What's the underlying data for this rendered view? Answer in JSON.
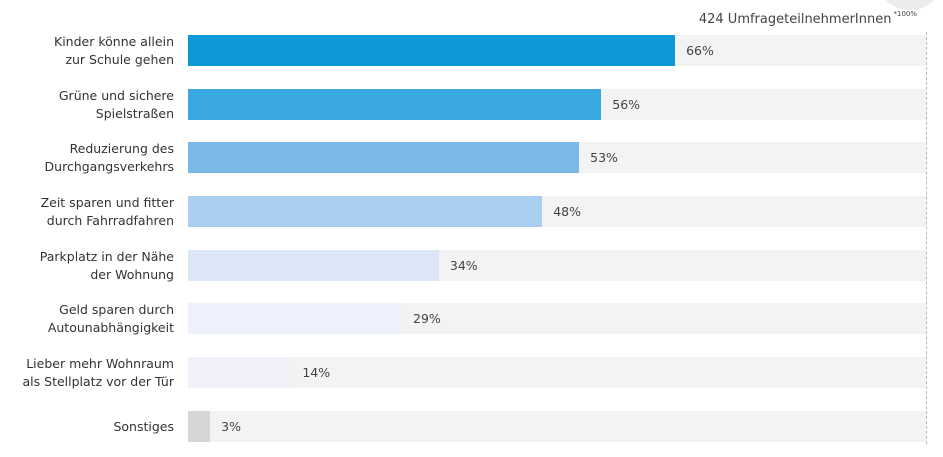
{
  "header": {
    "respondents": "424 UmfrageteilnehmerInnen",
    "respondents_note": "*100%"
  },
  "chart_data": {
    "type": "bar",
    "orientation": "horizontal",
    "xlim": [
      0,
      100
    ],
    "grid": false,
    "categories": [
      "Kinder könne allein\nzur Schule gehen",
      "Grüne und sichere\nSpielstraßen",
      "Reduzierung des\nDurchgangsverkehrs",
      "Zeit sparen und fitter\ndurch Fahrradfahren",
      "Parkplatz in der Nähe\nder Wohnung",
      "Geld sparen durch\nAutounabhängigkeit",
      "Lieber mehr Wohnraum\nals Stellplatz vor der Tür",
      "Sonstiges"
    ],
    "values": [
      66,
      56,
      53,
      48,
      34,
      29,
      14,
      3
    ],
    "value_labels": [
      "66%",
      "56%",
      "53%",
      "48%",
      "34%",
      "29%",
      "14%",
      "3%"
    ],
    "colors": [
      "#0d99d8",
      "#3aa8e0",
      "#7ab8e6",
      "#a9ceef",
      "#dbe6f6",
      "#ecf1fb",
      "#f1f1fa",
      "#d6d6d6"
    ],
    "track_color": "#f3f3f3"
  }
}
